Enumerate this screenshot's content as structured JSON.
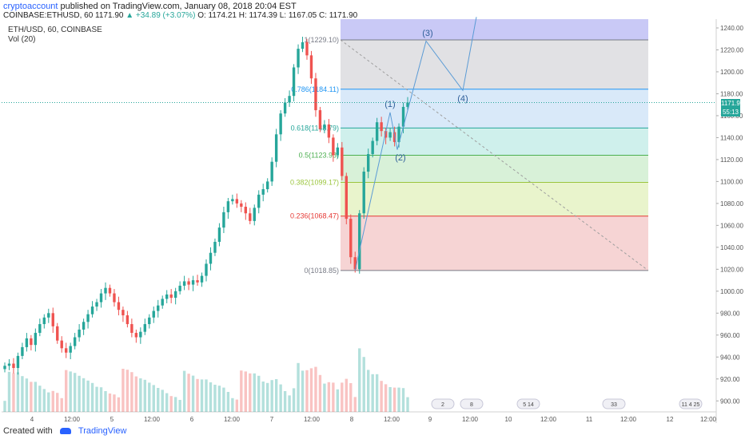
{
  "header": {
    "author": "cryptoaccount",
    "published_text": "published on TradingView.com, January 08, 2018 20:04 EST"
  },
  "ticker": {
    "symbol": "COINBASE:ETHUSD, 60",
    "last": "1171.90",
    "change": "▲ +34.89 (+3.07%)",
    "open": "O: 1174.21",
    "high": "H: 1174.39",
    "low": "L: 1167.05",
    "close": "C: 1171.90"
  },
  "legend": {
    "series_label": "ETH/USD, 60, COINBASE",
    "vol_label": "Vol (20)"
  },
  "price_tags": {
    "last_price": "1171.90",
    "countdown": "55:13"
  },
  "footer": {
    "created_with": "Created with",
    "brand": "TradingView"
  },
  "colors": {
    "up": "#26a69a",
    "down": "#ef5350",
    "accent": "#2962ff"
  },
  "chart_data": {
    "type": "candlestick",
    "ylim": [
      890,
      1248
    ],
    "y_ticks": [
      900,
      920,
      940,
      960,
      980,
      1000,
      1020,
      1040,
      1060,
      1080,
      1100,
      1120,
      1140,
      1160,
      1180,
      1200,
      1220,
      1240
    ],
    "x_ticks": [
      "4",
      "12:00",
      "5",
      "12:00",
      "6",
      "12:00",
      "7",
      "12:00",
      "8",
      "12:00",
      "9",
      "12:00",
      "10",
      "12:00",
      "11",
      "12:00",
      "12",
      "12:00"
    ],
    "fib_levels": [
      {
        "label": "1(1229.10)",
        "value": 1229.1,
        "color": "#787b86",
        "fill": "#e1e1e4"
      },
      {
        "label": "0.786(1184.11)",
        "value": 1184.11,
        "color": "#2196f3",
        "fill": "#d9e9f9"
      },
      {
        "label": "0.618(1148.79)",
        "value": 1148.79,
        "color": "#26a69a",
        "fill": "#cff0ec"
      },
      {
        "label": "0.5(1123.98)",
        "value": 1123.98,
        "color": "#4caf50",
        "fill": "#d8f1d8"
      },
      {
        "label": "0.382(1099.17)",
        "value": 1099.17,
        "color": "#9bc53d",
        "fill": "#e9f4cc"
      },
      {
        "label": "0.236(1068.47)",
        "value": 1068.47,
        "color": "#e53935",
        "fill": "#f6d4d4"
      },
      {
        "label": "0(1018.85)",
        "value": 1018.85,
        "color": "#787b86",
        "fill": null
      }
    ],
    "top_band_fill": "#c9c9f6",
    "wave_labels": [
      {
        "text": "(1)",
        "price": 1163
      },
      {
        "text": "(2)",
        "price": 1119
      },
      {
        "text": "(3)",
        "price": 1234
      },
      {
        "text": "(4)",
        "price": 1180
      }
    ],
    "event_badges": [
      "2",
      "8",
      "5",
      "14",
      "33",
      "11",
      "4",
      "25"
    ],
    "close_series": [
      932,
      934,
      930,
      941,
      949,
      957,
      951,
      962,
      970,
      976,
      980,
      968,
      955,
      948,
      944,
      950,
      958,
      965,
      972,
      979,
      986,
      990,
      998,
      1003,
      998,
      990,
      983,
      978,
      970,
      962,
      958,
      963,
      970,
      976,
      982,
      987,
      993,
      997,
      994,
      1000,
      1005,
      1009,
      1006,
      1010,
      1008,
      1014,
      1025,
      1035,
      1045,
      1058,
      1072,
      1082,
      1084,
      1080,
      1077,
      1071,
      1064,
      1076,
      1088,
      1093,
      1100,
      1118,
      1143,
      1162,
      1172,
      1178,
      1204,
      1221,
      1227,
      1215,
      1194,
      1165,
      1148,
      1152,
      1140,
      1124,
      1131,
      1105,
      1066,
      1031,
      1020,
      1071,
      1109,
      1125,
      1137,
      1154,
      1146,
      1140,
      1145,
      1136,
      1150,
      1168,
      1172
    ]
  }
}
